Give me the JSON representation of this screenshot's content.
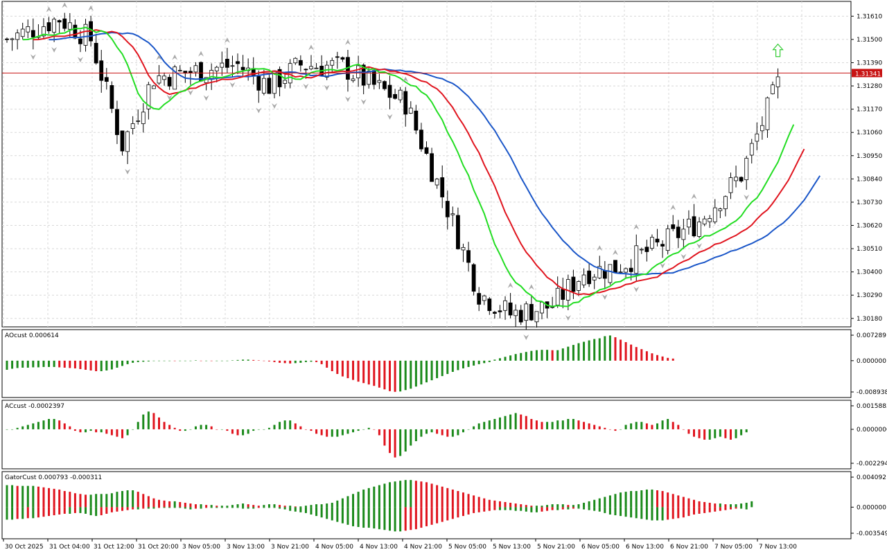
{
  "chart_data": [
    {
      "type": "candlestick",
      "symbol_price_label": "1.31341",
      "last_price": 1.31341,
      "y_ticks": [
        "1.31610",
        "1.31500",
        "1.31390",
        "1.31280",
        "1.31170",
        "1.31060",
        "1.30950",
        "1.30840",
        "1.30730",
        "1.30620",
        "1.30510",
        "1.30400",
        "1.30290",
        "1.30180"
      ],
      "ylim": [
        1.3014,
        1.3168
      ],
      "indicators": [
        "Alligator jaw",
        "Alligator teeth",
        "Alligator lips",
        "Fractals"
      ],
      "colors": {
        "jaw": "#1a56c8",
        "teeth": "#e0141e",
        "lips": "#22dd22",
        "bull_body": "#ffffff",
        "bear_body": "#000000",
        "price_line": "#c81414",
        "signal_arrow": "#33cc33"
      },
      "signal": "buy-arrow"
    },
    {
      "type": "histogram",
      "label": "AOcust 0.000614",
      "y_ticks": [
        "0.007289",
        "0.000000",
        "-0.008938"
      ],
      "ylim": [
        -0.008938,
        0.007289
      ],
      "colors": {
        "up": "#1b8a1b",
        "down": "#e0141e"
      },
      "values": [
        -0.0026,
        -0.0023,
        -0.0021,
        -0.002,
        -0.002,
        -0.0019,
        -0.0019,
        -0.0018,
        -0.0018,
        -0.0018,
        -0.0019,
        -0.002,
        -0.0021,
        -0.0022,
        -0.0024,
        -0.0026,
        -0.0028,
        -0.003,
        -0.003,
        -0.0028,
        -0.0025,
        -0.002,
        -0.0015,
        -0.001,
        -0.0006,
        -0.0004,
        -0.0003,
        -0.0002,
        -0.0001,
        -0.0001,
        0.0,
        0.0,
        -0.0001,
        0.0,
        0.0,
        0.0,
        0.0001,
        0.0,
        0.0,
        -0.0001,
        -0.0001,
        -0.0001,
        0.0,
        0.0001,
        0.0002,
        0.0003,
        0.0003,
        0.0002,
        0.0001,
        0.0,
        -0.0002,
        -0.0004,
        -0.0006,
        -0.0007,
        -0.0008,
        -0.0007,
        -0.0006,
        -0.0004,
        -0.0003,
        -0.0004,
        -0.001,
        -0.002,
        -0.003,
        -0.0038,
        -0.0045,
        -0.005,
        -0.0055,
        -0.006,
        -0.0064,
        -0.0068,
        -0.0072,
        -0.0077,
        -0.0082,
        -0.0087,
        -0.0089,
        -0.0088,
        -0.0084,
        -0.008,
        -0.0074,
        -0.0068,
        -0.0062,
        -0.0056,
        -0.005,
        -0.0044,
        -0.0038,
        -0.0032,
        -0.0027,
        -0.0022,
        -0.0018,
        -0.0014,
        -0.001,
        -0.0007,
        -0.0004,
        0.0003,
        0.0007,
        0.0011,
        0.0015,
        0.0019,
        0.0022,
        0.0025,
        0.0028,
        0.003,
        0.0031,
        0.0031,
        0.003,
        0.003,
        0.0035,
        0.004,
        0.0045,
        0.005,
        0.0054,
        0.0058,
        0.0062,
        0.0064,
        0.007,
        0.0072,
        0.0067,
        0.006,
        0.0053,
        0.0046,
        0.0039,
        0.0033,
        0.0027,
        0.0021,
        0.0016,
        0.0012,
        0.0008,
        0.0006
      ]
    },
    {
      "type": "histogram",
      "label": "ACcust -0.0002397",
      "y_ticks": [
        "0.0015883",
        "0.0000000",
        "-0.0022942"
      ],
      "ylim": [
        -0.0022942,
        0.0015883
      ],
      "colors": {
        "up": "#1b8a1b",
        "down": "#e0141e"
      },
      "values": [
        0.0,
        0.0,
        0.0001,
        0.0002,
        0.0003,
        0.0004,
        0.0005,
        0.0006,
        0.0007,
        0.0007,
        0.0006,
        0.0004,
        0.0002,
        -0.0001,
        -0.0002,
        -0.0002,
        -0.0001,
        -0.0002,
        -0.0002,
        -0.0003,
        -0.0004,
        -0.0005,
        -0.0006,
        -0.0004,
        0.0,
        0.0005,
        0.001,
        0.0012,
        0.0011,
        0.0008,
        0.0005,
        0.0003,
        0.0001,
        -0.0001,
        -0.0001,
        0.0,
        0.0002,
        0.0003,
        0.0003,
        0.0002,
        0.0,
        0.0,
        -0.0001,
        -0.0003,
        -0.0004,
        -0.0004,
        -0.0003,
        -0.0001,
        0.0,
        0.0,
        0.0001,
        0.0003,
        0.0005,
        0.0006,
        0.0006,
        0.0004,
        0.0002,
        0.0,
        -0.0001,
        -0.0003,
        -0.0004,
        -0.0005,
        -0.0005,
        -0.0005,
        -0.0004,
        -0.0003,
        -0.0002,
        -0.0001,
        0.0,
        0.0001,
        0.0,
        -0.0004,
        -0.0011,
        -0.0016,
        -0.0019,
        -0.0018,
        -0.0015,
        -0.0011,
        -0.0008,
        -0.0005,
        -0.0003,
        -0.0002,
        -0.0003,
        -0.0004,
        -0.0005,
        -0.0005,
        -0.0004,
        -0.0002,
        0.0,
        0.0002,
        0.0004,
        0.0005,
        0.0006,
        0.0007,
        0.0008,
        0.0009,
        0.001,
        0.0011,
        0.001,
        0.0009,
        0.0007,
        0.0006,
        0.0005,
        0.0005,
        0.0005,
        0.0006,
        0.0006,
        0.0007,
        0.0007,
        0.0006,
        0.0005,
        0.0004,
        0.0003,
        0.0002,
        0.0001,
        0.0,
        -0.0001,
        0.0,
        0.0003,
        0.0004,
        0.0005,
        0.0005,
        0.0004,
        0.0003,
        0.0004,
        0.0006,
        0.0007,
        0.0005,
        0.0003,
        0.0,
        -0.0003,
        -0.0005,
        -0.0006,
        -0.0007,
        -0.0007,
        -0.0006,
        -0.0005,
        -0.0006,
        -0.0007,
        -0.0006,
        -0.0004,
        -0.0002
      ]
    },
    {
      "type": "histogram-dual",
      "label": "GatorCust 0.000793 -0.000311",
      "y_ticks": [
        "0.004092",
        "0.000000",
        "-0.003549"
      ],
      "ylim": [
        -0.003549,
        0.004092
      ],
      "colors": {
        "up": "#1b8a1b",
        "down": "#e0141e"
      },
      "upper_values": [
        0.003,
        0.003,
        0.0029,
        0.0029,
        0.0029,
        0.0029,
        0.0028,
        0.0027,
        0.0026,
        0.0025,
        0.0024,
        0.0022,
        0.0021,
        0.0019,
        0.0018,
        0.0017,
        0.0017,
        0.0018,
        0.0018,
        0.0018,
        0.0019,
        0.0021,
        0.0022,
        0.0023,
        0.0023,
        0.0021,
        0.0018,
        0.0015,
        0.0012,
        0.001,
        0.0009,
        0.0008,
        0.0008,
        0.0007,
        0.0006,
        0.0005,
        0.0004,
        0.0004,
        0.0003,
        0.0003,
        0.0002,
        0.0002,
        0.0002,
        0.0003,
        0.0004,
        0.0005,
        0.0004,
        0.0003,
        0.0002,
        0.0003,
        0.0004,
        0.0004,
        0.0003,
        0.0002,
        0.0002,
        0.0001,
        0.0001,
        0.0002,
        0.0003,
        0.0004,
        0.0004,
        0.0005,
        0.0006,
        0.0009,
        0.0012,
        0.0015,
        0.0018,
        0.0021,
        0.0024,
        0.0026,
        0.0028,
        0.003,
        0.0032,
        0.0034,
        0.0035,
        0.0036,
        0.0037,
        0.0037,
        0.0036,
        0.0035,
        0.0034,
        0.0032,
        0.003,
        0.0028,
        0.0026,
        0.0024,
        0.0022,
        0.002,
        0.0018,
        0.0016,
        0.0014,
        0.0012,
        0.001,
        0.0009,
        0.0008,
        0.0007,
        0.0006,
        0.0005,
        0.0004,
        0.0003,
        0.0002,
        0.0002,
        0.0002,
        0.0003,
        0.0004,
        0.0004,
        0.0004,
        0.0003,
        0.0003,
        0.0004,
        0.0006,
        0.0008,
        0.001,
        0.0012,
        0.0014,
        0.0016,
        0.0018,
        0.002,
        0.0021,
        0.0022,
        0.0022,
        0.0023,
        0.0024,
        0.0024,
        0.0023,
        0.0022,
        0.002,
        0.0018,
        0.0016,
        0.0014,
        0.0012,
        0.001,
        0.0008,
        0.0007,
        0.0006,
        0.0005,
        0.0005,
        0.0004,
        0.0004,
        0.0004,
        0.0005,
        0.0006,
        0.0008
      ],
      "lower_values": [
        0.0017,
        0.0017,
        0.0016,
        0.0016,
        0.0015,
        0.0015,
        0.0014,
        0.0013,
        0.0012,
        0.0011,
        0.001,
        0.0009,
        0.0009,
        0.0008,
        0.0008,
        0.0009,
        0.0011,
        0.0012,
        0.0011,
        0.0009,
        0.0007,
        0.0006,
        0.0005,
        0.0004,
        0.0003,
        0.0003,
        0.0002,
        0.0002,
        0.0002,
        0.0001,
        0.0001,
        0.0001,
        0.0001,
        0.0001,
        0.0002,
        0.0003,
        0.0002,
        0.0002,
        0.0001,
        0.0001,
        0.0001,
        0.0001,
        0.0001,
        0.0001,
        0.0001,
        0.0002,
        0.0002,
        0.0002,
        0.0001,
        0.0001,
        0.0001,
        0.0001,
        0.0002,
        0.0003,
        0.0005,
        0.0006,
        0.0007,
        0.0008,
        0.001,
        0.0012,
        0.0014,
        0.0016,
        0.0018,
        0.002,
        0.0022,
        0.0024,
        0.0026,
        0.0027,
        0.0028,
        0.0028,
        0.0029,
        0.003,
        0.0031,
        0.0032,
        0.0033,
        0.0033,
        0.0032,
        0.0031,
        0.003,
        0.0028,
        0.0026,
        0.0024,
        0.0022,
        0.002,
        0.0018,
        0.0016,
        0.0014,
        0.0012,
        0.001,
        0.0008,
        0.0007,
        0.0006,
        0.0005,
        0.0004,
        0.0004,
        0.0004,
        0.0004,
        0.0005,
        0.0005,
        0.0006,
        0.0007,
        0.0007,
        0.0006,
        0.0005,
        0.0004,
        0.0004,
        0.0003,
        0.0003,
        0.0002,
        0.0002,
        0.0003,
        0.0004,
        0.0005,
        0.0006,
        0.0008,
        0.001,
        0.0011,
        0.0012,
        0.0013,
        0.0014,
        0.0015,
        0.0016,
        0.0017,
        0.0018,
        0.0018,
        0.0018,
        0.0017,
        0.0016,
        0.0015,
        0.0014,
        0.0012,
        0.001,
        0.0009,
        0.0008,
        0.0007,
        0.0006,
        0.0005,
        0.0004,
        0.0003,
        0.0002,
        0.0002,
        0.0003
      ]
    }
  ],
  "x_axis": {
    "labels": [
      "30 Oct 2025",
      "31 Oct 04:00",
      "31 Oct 12:00",
      "31 Oct 20:00",
      "3 Nov 05:00",
      "3 Nov 13:00",
      "3 Nov 21:00",
      "4 Nov 05:00",
      "4 Nov 13:00",
      "4 Nov 21:00",
      "5 Nov 05:00",
      "5 Nov 13:00",
      "5 Nov 21:00",
      "6 Nov 05:00",
      "6 Nov 13:00",
      "6 Nov 21:00",
      "7 Nov 05:00",
      "7 Nov 13:00"
    ]
  }
}
